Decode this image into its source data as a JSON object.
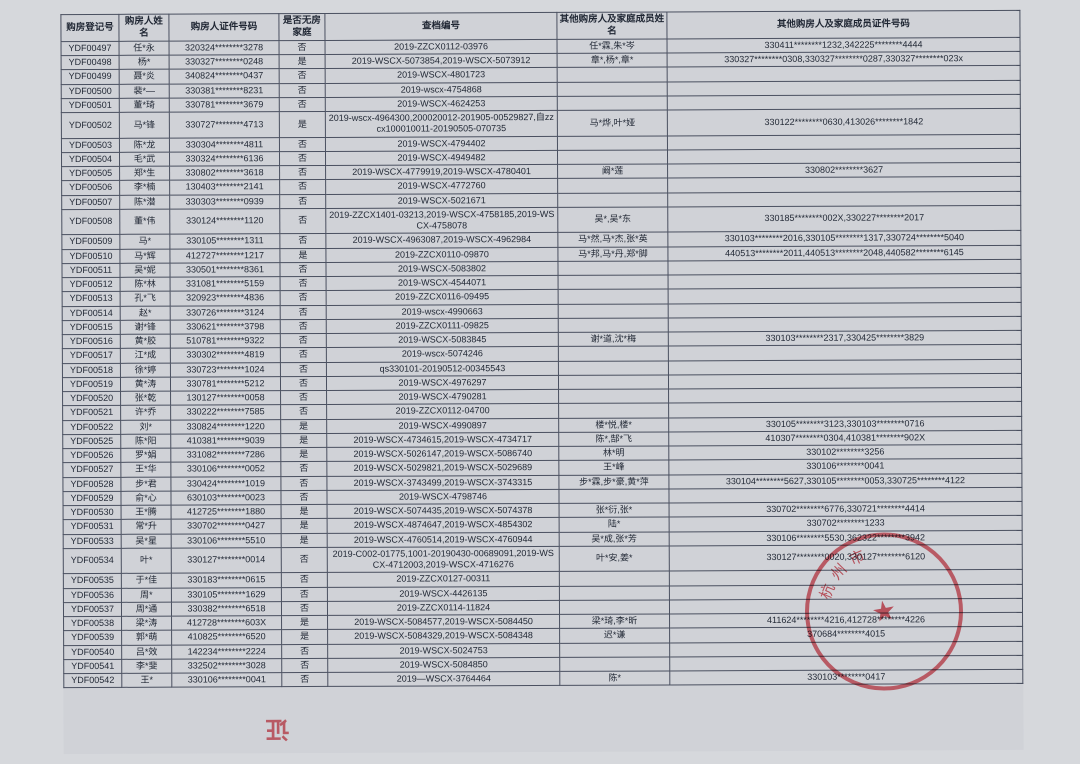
{
  "columns": [
    "购房登记号",
    "购房人姓名",
    "购房人证件号码",
    "是否无房家庭",
    "查档编号",
    "其他购房人及家庭成员姓名",
    "其他购房人及家庭成员证件号码"
  ],
  "rows": [
    [
      "YDF00497",
      "任*永",
      "320324********3278",
      "否",
      "2019-ZZCX0112-03976",
      "任*霖,朱*岑",
      "330411********1232,342225********4444"
    ],
    [
      "YDF00498",
      "杨*",
      "330327********0248",
      "是",
      "2019-WSCX-5073854,2019-WSCX-5073912",
      "章*,杨*,章*",
      "330327********0308,330327********0287,330327********023x"
    ],
    [
      "YDF00499",
      "聂*炎",
      "340824********0437",
      "否",
      "2019-WSCX-4801723",
      "",
      ""
    ],
    [
      "YDF00500",
      "裴*—",
      "330381********8231",
      "否",
      "2019-wscx-4754868",
      "",
      ""
    ],
    [
      "YDF00501",
      "董*琦",
      "330781********3679",
      "否",
      "2019-WSCX-4624253",
      "",
      ""
    ],
    [
      "YDF00502",
      "马*锋",
      "330727********4713",
      "是",
      "2019-wscx-4964300,200020012-201905-00529827,自zzcx100010011-20190505-070735",
      "马*烨,叶*娅",
      "330122********0630,413026********1842"
    ],
    [
      "YDF00503",
      "陈*龙",
      "330304********4811",
      "否",
      "2019-WSCX-4794402",
      "",
      ""
    ],
    [
      "YDF00504",
      "毛*武",
      "330324********6136",
      "否",
      "2019-WSCX-4949482",
      "",
      ""
    ],
    [
      "YDF00505",
      "郑*生",
      "330802********3618",
      "否",
      "2019-WSCX-4779919,2019-WSCX-4780401",
      "阚*莲",
      "330802********3627"
    ],
    [
      "YDF00506",
      "李*楠",
      "130403********2141",
      "否",
      "2019-WSCX-4772760",
      "",
      ""
    ],
    [
      "YDF00507",
      "陈*潜",
      "330303********0939",
      "否",
      "2019-WSCX-5021671",
      "",
      ""
    ],
    [
      "YDF00508",
      "董*伟",
      "330124********1120",
      "否",
      "2019-ZZCX1401-03213,2019-WSCX-4758185,2019-WSCX-4758078",
      "吴*,吴*东",
      "330185********002X,330227********2017"
    ],
    [
      "YDF00509",
      "马*",
      "330105********1311",
      "否",
      "2019-WSCX-4963087,2019-WSCX-4962984",
      "马*然,马*杰,张*英",
      "330103********2016,330105********1317,330724********5040"
    ],
    [
      "YDF00510",
      "马*辉",
      "412727********1217",
      "是",
      "2019-ZZCX0110-09870",
      "马*邦,马*丹,郑*脚",
      "440513********2011,440513********2048,440582********6145"
    ],
    [
      "YDF00511",
      "吴*妮",
      "330501********8361",
      "否",
      "2019-WSCX-5083802",
      "",
      ""
    ],
    [
      "YDF00512",
      "陈*林",
      "331081********5159",
      "否",
      "2019-WSCX-4544071",
      "",
      ""
    ],
    [
      "YDF00513",
      "孔*飞",
      "320923********4836",
      "否",
      "2019-ZZCX0116-09495",
      "",
      ""
    ],
    [
      "YDF00514",
      "赵*",
      "330726********3124",
      "否",
      "2019-wscx-4990663",
      "",
      ""
    ],
    [
      "YDF00515",
      "谢*锋",
      "330621********3798",
      "否",
      "2019-ZZCX0111-09825",
      "",
      ""
    ],
    [
      "YDF00516",
      "黄*胶",
      "510781********9322",
      "否",
      "2019-WSCX-5083845",
      "谢*道,沈*梅",
      "330103********2317,330425********3829"
    ],
    [
      "YDF00517",
      "江*成",
      "330302********4819",
      "否",
      "2019-wscx-5074246",
      "",
      ""
    ],
    [
      "YDF00518",
      "徐*婷",
      "330723********1024",
      "否",
      "qs330101-20190512-00345543",
      "",
      ""
    ],
    [
      "YDF00519",
      "黄*涛",
      "330781********5212",
      "否",
      "2019-WSCX-4976297",
      "",
      ""
    ],
    [
      "YDF00520",
      "张*乾",
      "130127********0058",
      "否",
      "2019-WSCX-4790281",
      "",
      ""
    ],
    [
      "YDF00521",
      "许*乔",
      "330222********7585",
      "否",
      "2019-ZZCX0112-04700",
      "",
      ""
    ],
    [
      "YDF00522",
      "刘*",
      "330824********1220",
      "是",
      "2019-WSCX-4990897",
      "楼*悦,楼*",
      "330105********3123,330103********0716"
    ],
    [
      "YDF00525",
      "陈*阳",
      "410381********9039",
      "是",
      "2019-WSCX-4734615,2019-WSCX-4734717",
      "陈*,郜*飞",
      "410307********0304,410381********902X"
    ],
    [
      "YDF00526",
      "罗*娟",
      "331082********7286",
      "是",
      "2019-WSCX-5026147,2019-WSCX-5086740",
      "林*明",
      "330102********3256"
    ],
    [
      "YDF00527",
      "王*华",
      "330106********0052",
      "否",
      "2019-WSCX-5029821,2019-WSCX-5029689",
      "王*峰",
      "330106********0041"
    ],
    [
      "YDF00528",
      "步*君",
      "330424********1019",
      "否",
      "2019-WSCX-3743499,2019-WSCX-3743315",
      "步*霖,步*豪,黄*萍",
      "330104********5627,330105********0053,330725********4122"
    ],
    [
      "YDF00529",
      "俞*心",
      "630103********0023",
      "否",
      "2019-WSCX-4798746",
      "",
      ""
    ],
    [
      "YDF00530",
      "王*腾",
      "412725********1880",
      "是",
      "2019-WSCX-5074435,2019-WSCX-5074378",
      "张*衍,张*",
      "330702********6776,330721********4414"
    ],
    [
      "YDF00531",
      "常*升",
      "330702********0427",
      "是",
      "2019-WSCX-4874647,2019-WSCX-4854302",
      "陆*",
      "330702********1233"
    ],
    [
      "YDF00533",
      "吴*星",
      "330106********5510",
      "是",
      "2019-WSCX-4760514,2019-WSCX-4760944",
      "吴*成,张*芳",
      "330106********5530,362322********3942"
    ],
    [
      "YDF00534",
      "叶*",
      "330127********0014",
      "否",
      "2019-C002-01775,1001-20190430-00689091,2019-WSCX-4712003,2019-WSCX-4716276",
      "叶*安,姜*",
      "330127********0020,330127********6120"
    ],
    [
      "YDF00535",
      "于*佳",
      "330183********0615",
      "否",
      "2019-ZZCX0127-00311",
      "",
      ""
    ],
    [
      "YDF00536",
      "周*",
      "330105********1629",
      "否",
      "2019-WSCX-4426135",
      "",
      ""
    ],
    [
      "YDF00537",
      "周*通",
      "330382********6518",
      "否",
      "2019-ZZCX0114-11824",
      "",
      ""
    ],
    [
      "YDF00538",
      "梁*涛",
      "412728********603X",
      "是",
      "2019-WSCX-5084577,2019-WSCX-5084450",
      "梁*琦,李*昕",
      "411624********4216,412728********4226"
    ],
    [
      "YDF00539",
      "郭*萌",
      "410825********6520",
      "是",
      "2019-WSCX-5084329,2019-WSCX-5084348",
      "迟*谦",
      "370684********4015"
    ],
    [
      "YDF00540",
      "吕*效",
      "142234********2224",
      "否",
      "2019-WSCX-5024753",
      "",
      ""
    ],
    [
      "YDF00541",
      "李*斐",
      "332502********3028",
      "否",
      "2019-WSCX-5084850",
      "",
      ""
    ],
    [
      "YDF00542",
      "王*",
      "330106********0041",
      "否",
      "2019—WSCX-3764464",
      "陈*",
      "330103********0417"
    ]
  ],
  "style": {
    "background": "#d6d8dc",
    "sheet_bg": "#d0d2d7",
    "border_color": "#4a5060",
    "text_color": "#1f2633",
    "header_fontsize": 9.5,
    "cell_fontsize": 9,
    "font_family": "SimSun",
    "rotate_deg": -0.25,
    "stamp_color": "rgba(210,30,45,0.65)",
    "stamp_text": "杭州市",
    "bottom_mark": "证"
  }
}
